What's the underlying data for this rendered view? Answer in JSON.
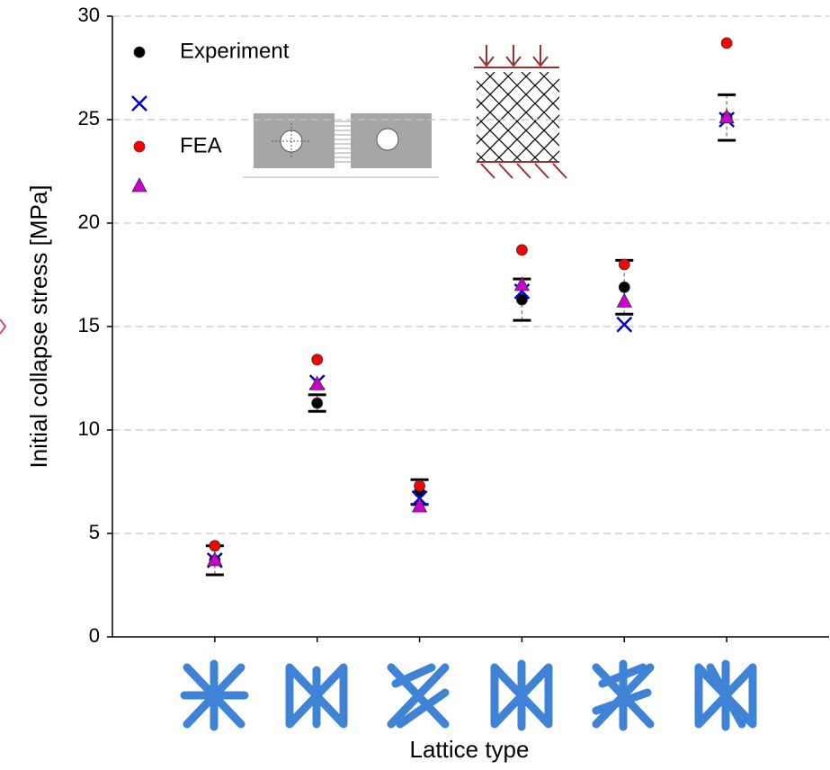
{
  "chart_data": {
    "type": "scatter",
    "y_label": "Initial collapse stress [MPa]",
    "x_label": "Lattice type",
    "categories": [
      null,
      null,
      null,
      null,
      null,
      null
    ],
    "ylim": [
      0,
      30
    ],
    "yticks": [
      0,
      5,
      10,
      15,
      20,
      25,
      30
    ],
    "grid": true,
    "series": [
      {
        "name": "Experiment",
        "color": "#000000",
        "marker": "circle",
        "values": [
          3.7,
          11.3,
          7.0,
          16.3,
          16.9,
          25.1
        ],
        "errors": [
          0.7,
          0.4,
          0.6,
          1.0,
          1.3,
          1.1
        ]
      },
      {
        "color": "#0000cc",
        "marker": "x",
        "values": [
          3.7,
          12.3,
          6.7,
          16.7,
          15.1,
          25.0
        ]
      },
      {
        "name": "FEA",
        "color": "#ff0000",
        "marker": "circle",
        "values": [
          4.4,
          13.4,
          7.3,
          18.7,
          18.0,
          28.7
        ]
      },
      {
        "color": "#cc00cc",
        "marker": "triangle",
        "values": [
          3.7,
          12.2,
          6.3,
          17.0,
          16.2,
          25.1
        ]
      }
    ]
  }
}
